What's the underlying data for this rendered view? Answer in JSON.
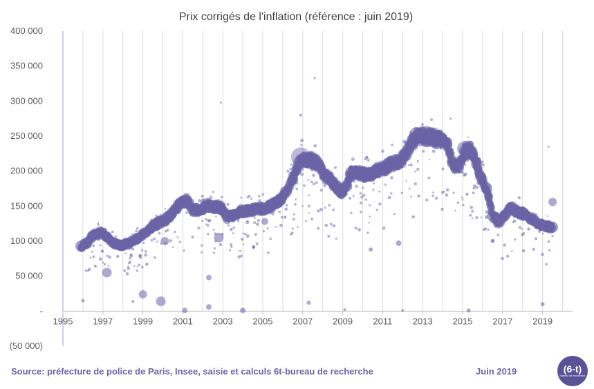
{
  "chart_data": {
    "type": "scatter",
    "title": "Prix corrigés de l'inflation (référence : juin 2019)",
    "xlabel": "",
    "ylabel": "",
    "xlim": [
      1995,
      2020.5
    ],
    "ylim": [
      -50000,
      400000
    ],
    "x_ticks": [
      1995,
      1997,
      1999,
      2001,
      2003,
      2005,
      2007,
      2009,
      2011,
      2013,
      2015,
      2017,
      2019
    ],
    "x_tick_labels": [
      "1995",
      "1997",
      "1999",
      "2001",
      "2003",
      "2005",
      "2007",
      "2009",
      "2011",
      "2013",
      "2015",
      "2017",
      "2019"
    ],
    "y_ticks": [
      -50000,
      0,
      50000,
      100000,
      150000,
      200000,
      250000,
      300000,
      350000,
      400000
    ],
    "y_tick_labels": [
      "(50 000)",
      "-",
      "50 000",
      "100 000",
      "150 000",
      "200 000",
      "250 000",
      "300 000",
      "350 000",
      "400 000"
    ],
    "grid": "vertical",
    "marker_color": "#6c63a6",
    "series": [
      {
        "trend": [
          [
            1995.9,
            93000
          ],
          [
            1996.2,
            97000
          ],
          [
            1996.5,
            108000
          ],
          [
            1996.9,
            112000
          ],
          [
            1997.2,
            106000
          ],
          [
            1997.6,
            96000
          ],
          [
            1997.9,
            94000
          ],
          [
            1998.3,
            97000
          ],
          [
            1998.7,
            103000
          ],
          [
            1999.1,
            112000
          ],
          [
            1999.5,
            122000
          ],
          [
            1999.9,
            128000
          ],
          [
            2000.3,
            134000
          ],
          [
            2000.6,
            145000
          ],
          [
            2000.9,
            155000
          ],
          [
            2001.2,
            158000
          ],
          [
            2001.5,
            145000
          ],
          [
            2001.8,
            144000
          ],
          [
            2002.2,
            150000
          ],
          [
            2002.6,
            149000
          ],
          [
            2002.9,
            148000
          ],
          [
            2003.2,
            135000
          ],
          [
            2003.6,
            138000
          ],
          [
            2003.9,
            142000
          ],
          [
            2004.3,
            144000
          ],
          [
            2004.7,
            146000
          ],
          [
            2005.1,
            146000
          ],
          [
            2005.5,
            152000
          ],
          [
            2005.9,
            160000
          ],
          [
            2006.2,
            171000
          ],
          [
            2006.5,
            188000
          ],
          [
            2006.8,
            212000
          ],
          [
            2007.1,
            216000
          ],
          [
            2007.5,
            215000
          ],
          [
            2007.8,
            210000
          ],
          [
            2008.1,
            194000
          ],
          [
            2008.4,
            187000
          ],
          [
            2008.7,
            176000
          ],
          [
            2008.9,
            170000
          ],
          [
            2009.2,
            178000
          ],
          [
            2009.4,
            198000
          ],
          [
            2009.8,
            196000
          ],
          [
            2010.2,
            194000
          ],
          [
            2010.6,
            200000
          ],
          [
            2011.0,
            202000
          ],
          [
            2011.4,
            210000
          ],
          [
            2011.8,
            212000
          ],
          [
            2012.1,
            222000
          ],
          [
            2012.4,
            237000
          ],
          [
            2012.7,
            250000
          ],
          [
            2013.1,
            250000
          ],
          [
            2013.5,
            248000
          ],
          [
            2013.9,
            245000
          ],
          [
            2014.2,
            241000
          ],
          [
            2014.5,
            211000
          ],
          [
            2014.8,
            205000
          ],
          [
            2015.1,
            229000
          ],
          [
            2015.4,
            230000
          ],
          [
            2015.7,
            210000
          ],
          [
            2015.9,
            192000
          ],
          [
            2016.2,
            176000
          ],
          [
            2016.5,
            136000
          ],
          [
            2016.8,
            128000
          ],
          [
            2017.1,
            136000
          ],
          [
            2017.4,
            148000
          ],
          [
            2017.7,
            143000
          ],
          [
            2018.1,
            138000
          ],
          [
            2018.5,
            130000
          ],
          [
            2018.9,
            124000
          ],
          [
            2019.2,
            121000
          ],
          [
            2019.5,
            120000
          ]
        ],
        "outliers": [
          [
            1997.2,
            55000,
            7
          ],
          [
            1999.0,
            24000,
            6
          ],
          [
            1999.9,
            14000,
            7
          ],
          [
            2000.1,
            100000,
            6
          ],
          [
            2001.1,
            1000,
            4
          ],
          [
            2002.3,
            48000,
            4
          ],
          [
            2002.3,
            6000,
            4
          ],
          [
            2002.8,
            105000,
            7
          ],
          [
            2002.9,
            298000,
            1.5
          ],
          [
            2004.0,
            1000,
            4
          ],
          [
            2005.1,
            128000,
            5
          ],
          [
            2006.9,
            280000,
            2
          ],
          [
            2007.6,
            333000,
            1.5
          ],
          [
            2007.3,
            12000,
            3
          ],
          [
            2011.8,
            97000,
            4
          ],
          [
            2010.4,
            88000,
            3
          ],
          [
            2015.3,
            1000,
            3
          ],
          [
            2019.5,
            156000,
            6
          ],
          [
            2019.0,
            10000,
            3
          ],
          [
            2016.5,
            100000,
            3
          ],
          [
            1998.5,
            14000,
            2
          ],
          [
            1996.0,
            15000,
            2.5
          ],
          [
            2009.1,
            2000,
            2
          ],
          [
            2012.0,
            1000,
            2
          ],
          [
            2014.4,
            275000,
            1.5
          ],
          [
            2019.3,
            235000,
            1.5
          ]
        ]
      }
    ]
  },
  "footer": {
    "source": "Source: préfecture de police de Paris, Insee, saisie et calculs 6t-bureau de recherche",
    "date": "Juin 2019",
    "logo_main": "(6-t)",
    "logo_sub": "bureau de recherche"
  }
}
